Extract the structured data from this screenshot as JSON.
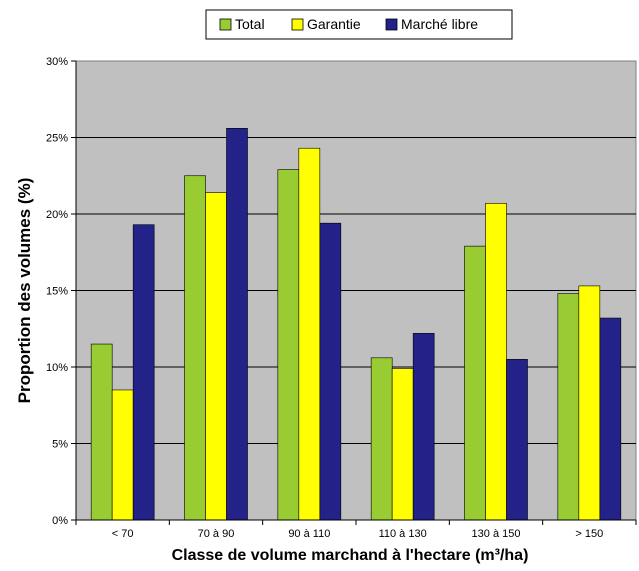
{
  "chart_data": {
    "type": "bar",
    "title": "",
    "xlabel": "Classe de volume marchand à l'hectare (m³/ha)",
    "ylabel": "Proportion des volumes (%)",
    "categories": [
      "< 70",
      "70 à 90",
      "90 à 110",
      "110 à 130",
      "130 à 150",
      "> 150"
    ],
    "series": [
      {
        "name": "Total",
        "color": "#99cc33",
        "values": [
          11.5,
          22.5,
          22.9,
          10.6,
          17.9,
          14.8
        ]
      },
      {
        "name": "Garantie",
        "color": "#ffff00",
        "values": [
          8.5,
          21.4,
          24.3,
          9.9,
          20.7,
          15.3
        ]
      },
      {
        "name": "Marché libre",
        "color": "#222288",
        "values": [
          19.3,
          25.6,
          19.4,
          12.2,
          10.5,
          13.2
        ]
      }
    ],
    "ylim": [
      0,
      30
    ],
    "yticks": [
      "0%",
      "5%",
      "10%",
      "15%",
      "20%",
      "25%",
      "30%"
    ],
    "grid": true,
    "legend_position": "top-center",
    "plot_background": "#c0c0c0"
  }
}
